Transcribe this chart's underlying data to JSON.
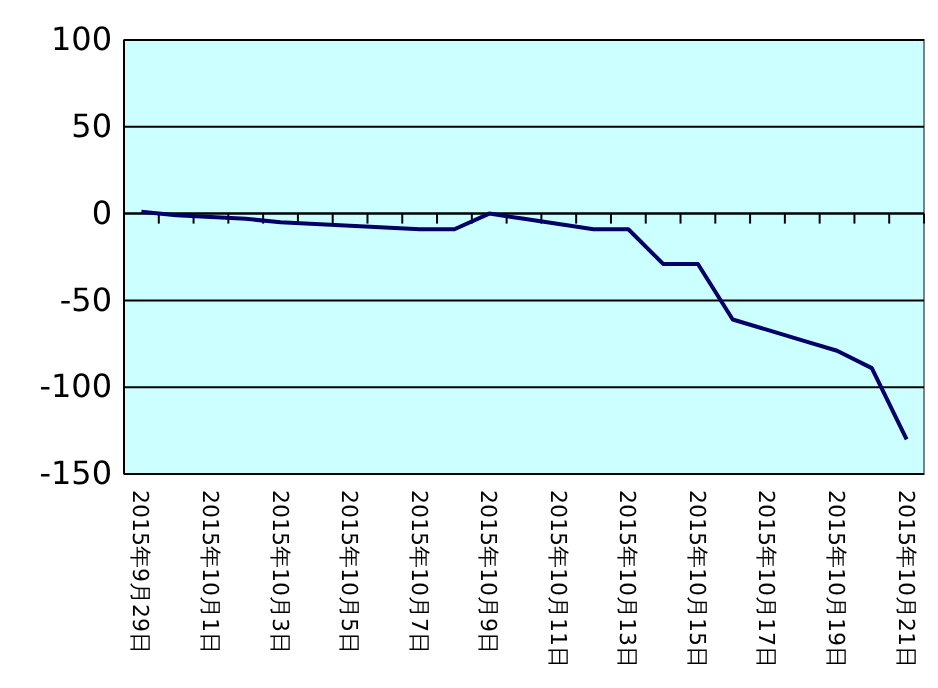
{
  "chart_data": {
    "type": "line",
    "categories": [
      "2015年9月29日",
      null,
      "2015年10月1日",
      null,
      "2015年10月3日",
      null,
      "2015年10月5日",
      null,
      "2015年10月7日",
      null,
      "2015年10月9日",
      null,
      "2015年10月11日",
      null,
      "2015年10月13日",
      null,
      "2015年10月15日",
      null,
      "2015年10月17日",
      null,
      "2015年10月19日",
      null,
      "2015年10月21日"
    ],
    "series": [
      {
        "color": "#000066",
        "values": [
          1,
          -1,
          -2,
          -3,
          -5,
          -6,
          -7,
          -8,
          -9,
          -9,
          0,
          -3,
          -6,
          -9,
          -9,
          -29,
          -29,
          -61,
          -67,
          -73,
          -79,
          -89,
          -130
        ]
      }
    ],
    "ylim": [
      -150,
      100
    ],
    "yticks": [
      -150,
      -100,
      -50,
      0,
      50,
      100
    ],
    "grid": "y",
    "marker": "none",
    "line_style": "solid"
  }
}
